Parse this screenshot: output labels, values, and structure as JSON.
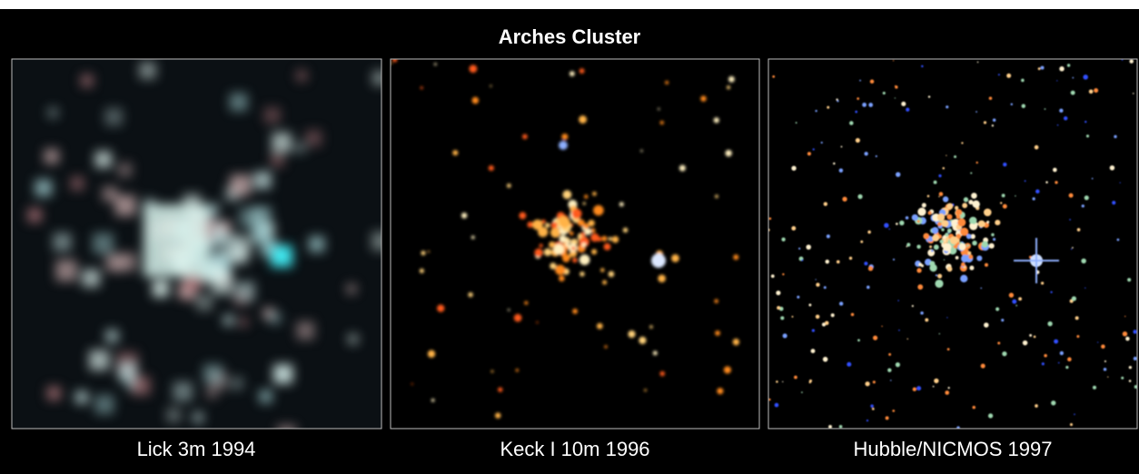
{
  "title": "Arches Cluster",
  "panels": [
    {
      "caption": "Lick 3m 1994"
    },
    {
      "caption": "Keck I 10m 1996"
    },
    {
      "caption": "Hubble/NICMOS 1997"
    }
  ]
}
